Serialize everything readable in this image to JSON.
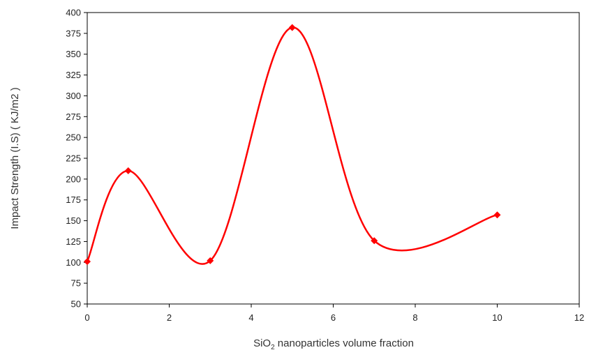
{
  "chart_data": {
    "type": "line",
    "title": "",
    "xlabel_main": "SiO",
    "xlabel_sub": "2",
    "xlabel_rest": " nanoparticles volume fraction",
    "ylabel": "Impact Strength (I.S) ( KJ/m2 )",
    "xlim": [
      0,
      12
    ],
    "ylim": [
      50,
      400
    ],
    "x_ticks": [
      "0",
      "2",
      "4",
      "6",
      "8",
      "10",
      "12"
    ],
    "y_ticks": [
      "50",
      "75",
      "100",
      "125",
      "150",
      "175",
      "200",
      "225",
      "250",
      "275",
      "300",
      "325",
      "350",
      "375",
      "400"
    ],
    "grid": false,
    "legend": "none",
    "smooth": true,
    "series": [
      {
        "color": "#ff0000",
        "marker": "diamond",
        "x": [
          0,
          1,
          3,
          5,
          7,
          10
        ],
        "y": [
          101,
          210,
          102,
          382,
          126,
          157
        ]
      }
    ]
  }
}
